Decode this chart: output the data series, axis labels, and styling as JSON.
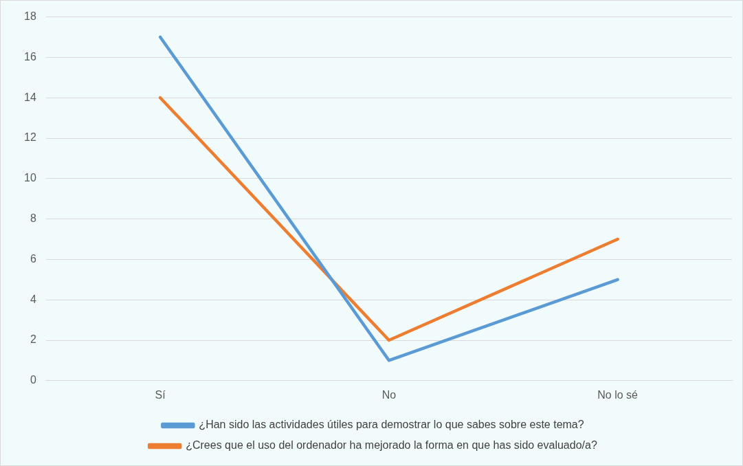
{
  "chart_data": {
    "type": "line",
    "categories": [
      "Sí",
      "No",
      "No lo sé"
    ],
    "series": [
      {
        "name": "¿Han sido las actividades útiles para demostrar lo que sabes sobre este tema?",
        "color": "#5b9bd5",
        "values": [
          17,
          1,
          5
        ]
      },
      {
        "name": "¿Crees que el uso del ordenador ha mejorado la forma en que has sido evaluado/a?",
        "color": "#ed7d31",
        "values": [
          14,
          2,
          7
        ]
      }
    ],
    "ylim": [
      0,
      18
    ],
    "yticks": [
      0,
      2,
      4,
      6,
      8,
      10,
      12,
      14,
      16,
      18
    ],
    "grid": "y",
    "legend": "bottom",
    "marker": "none",
    "line_style": "solid"
  }
}
